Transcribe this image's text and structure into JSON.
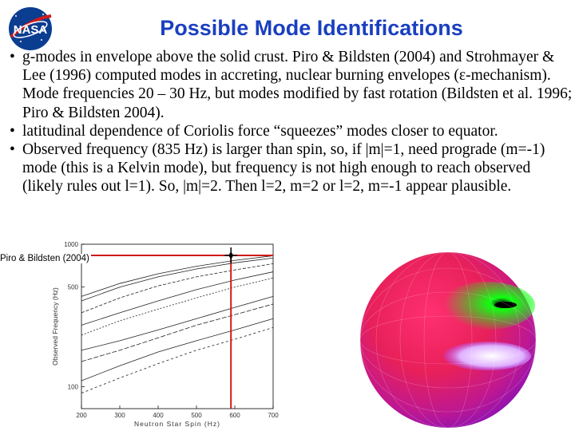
{
  "title": "Possible Mode Identifications",
  "bullets": [
    "g-modes in envelope above the solid crust. Piro & Bildsten (2004) and Strohmayer & Lee (1996) computed modes in accreting, nuclear burning envelopes (ε-mechanism). Mode frequencies 20 – 30 Hz, but modes modified by fast rotation (Bildsten et al. 1996; Piro & Bildsten 2004).",
    "latitudinal dependence of Coriolis force “squeezes” modes closer to equator.",
    "Observed frequency (835 Hz) is larger than spin, so, if |m|=1, need prograde (m=-1) mode (this is a Kelvin mode), but frequency is not high enough to reach observed (likely rules out l=1). So, |m|=2. Then l=2, m=2 or l=2, m=-1 appear plausible."
  ],
  "logo_text": "NASA",
  "credit": "Piro & Bildsten (2004)",
  "chart_data": {
    "type": "line",
    "xlabel": "Neutron Star Spin (Hz)",
    "ylabel": "Observed Frequency (Hz)",
    "xlim": [
      200,
      700
    ],
    "ylim": [
      70,
      1000
    ],
    "y_scale": "log",
    "x_ticks": [
      "200",
      "300",
      "400",
      "500",
      "600",
      "700"
    ],
    "y_ticks": [
      "1000",
      "500",
      "100"
    ],
    "markers": {
      "x": 590,
      "y": 835
    },
    "series": [
      {
        "values": [
          [
            200,
            430
          ],
          [
            300,
            530
          ],
          [
            400,
            620
          ],
          [
            500,
            700
          ],
          [
            600,
            770
          ],
          [
            700,
            830
          ]
        ]
      },
      {
        "values": [
          [
            200,
            400
          ],
          [
            300,
            500
          ],
          [
            400,
            590
          ],
          [
            500,
            670
          ],
          [
            600,
            740
          ],
          [
            700,
            800
          ]
        ]
      },
      {
        "values": [
          [
            200,
            330
          ],
          [
            300,
            420
          ],
          [
            400,
            510
          ],
          [
            500,
            590
          ],
          [
            600,
            660
          ],
          [
            700,
            730
          ]
        ]
      },
      {
        "values": [
          [
            200,
            270
          ],
          [
            300,
            330
          ],
          [
            400,
            400
          ],
          [
            500,
            480
          ],
          [
            600,
            560
          ],
          [
            700,
            640
          ]
        ]
      },
      {
        "values": [
          [
            200,
            230
          ],
          [
            300,
            290
          ],
          [
            400,
            350
          ],
          [
            500,
            420
          ],
          [
            600,
            500
          ],
          [
            700,
            580
          ]
        ]
      },
      {
        "values": [
          [
            200,
            180
          ],
          [
            300,
            210
          ],
          [
            400,
            250
          ],
          [
            500,
            300
          ],
          [
            600,
            360
          ],
          [
            700,
            430
          ]
        ]
      },
      {
        "values": [
          [
            200,
            150
          ],
          [
            300,
            180
          ],
          [
            400,
            220
          ],
          [
            500,
            270
          ],
          [
            600,
            320
          ],
          [
            700,
            380
          ]
        ]
      },
      {
        "values": [
          [
            200,
            110
          ],
          [
            300,
            140
          ],
          [
            400,
            175
          ],
          [
            500,
            210
          ],
          [
            600,
            250
          ],
          [
            700,
            300
          ]
        ]
      },
      {
        "values": [
          [
            200,
            90
          ],
          [
            300,
            115
          ],
          [
            400,
            145
          ],
          [
            500,
            180
          ],
          [
            600,
            215
          ],
          [
            700,
            260
          ]
        ]
      }
    ]
  },
  "colors": {
    "title": "#1a3fbf",
    "marker": "#d11a1a"
  }
}
